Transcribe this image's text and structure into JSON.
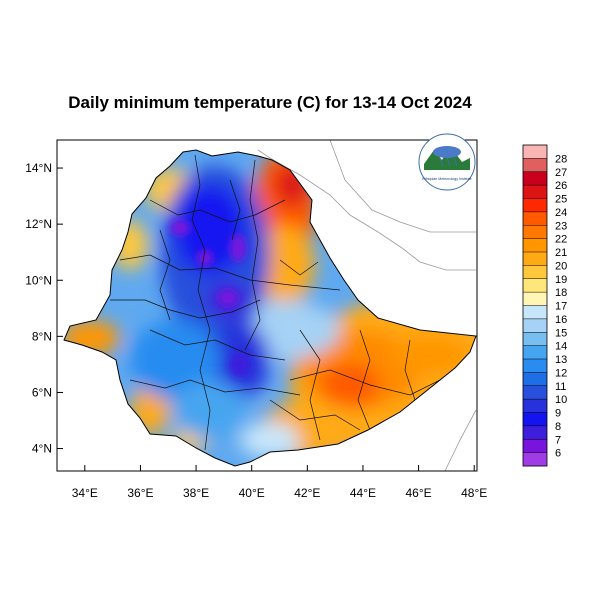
{
  "title": "Daily minimum temperature (C) for 13-14 Oct 2024",
  "x_ticks": [
    "34°E",
    "36°E",
    "38°E",
    "40°E",
    "42°E",
    "44°E",
    "46°E",
    "48°E"
  ],
  "y_ticks": [
    "14°N",
    "12°N",
    "10°N",
    "8°N",
    "6°N",
    "4°N"
  ],
  "colorbar": {
    "labels": [
      "28",
      "27",
      "26",
      "25",
      "24",
      "23",
      "22",
      "21",
      "20",
      "19",
      "18",
      "17",
      "16",
      "15",
      "14",
      "13",
      "12",
      "11",
      "10",
      "9",
      "8",
      "7",
      "6"
    ],
    "colors": [
      "#f9b4b4",
      "#e06060",
      "#c8001e",
      "#dc1414",
      "#ff2800",
      "#ff5a00",
      "#ff7800",
      "#ff9600",
      "#ffaa14",
      "#ffc83c",
      "#ffe678",
      "#fff5b4",
      "#c8e6fa",
      "#a5d2f5",
      "#78bef0",
      "#46a5f0",
      "#288cf0",
      "#1e6ee6",
      "#2850dc",
      "#2832dc",
      "#1414f0",
      "#3c1edc",
      "#7814dc",
      "#a03ce6"
    ]
  },
  "logo": {
    "text": "Ethiopian Meteorology Institute"
  },
  "ranges": {
    "lon": [
      33,
      48.1
    ],
    "lat": [
      3.2,
      15
    ]
  }
}
